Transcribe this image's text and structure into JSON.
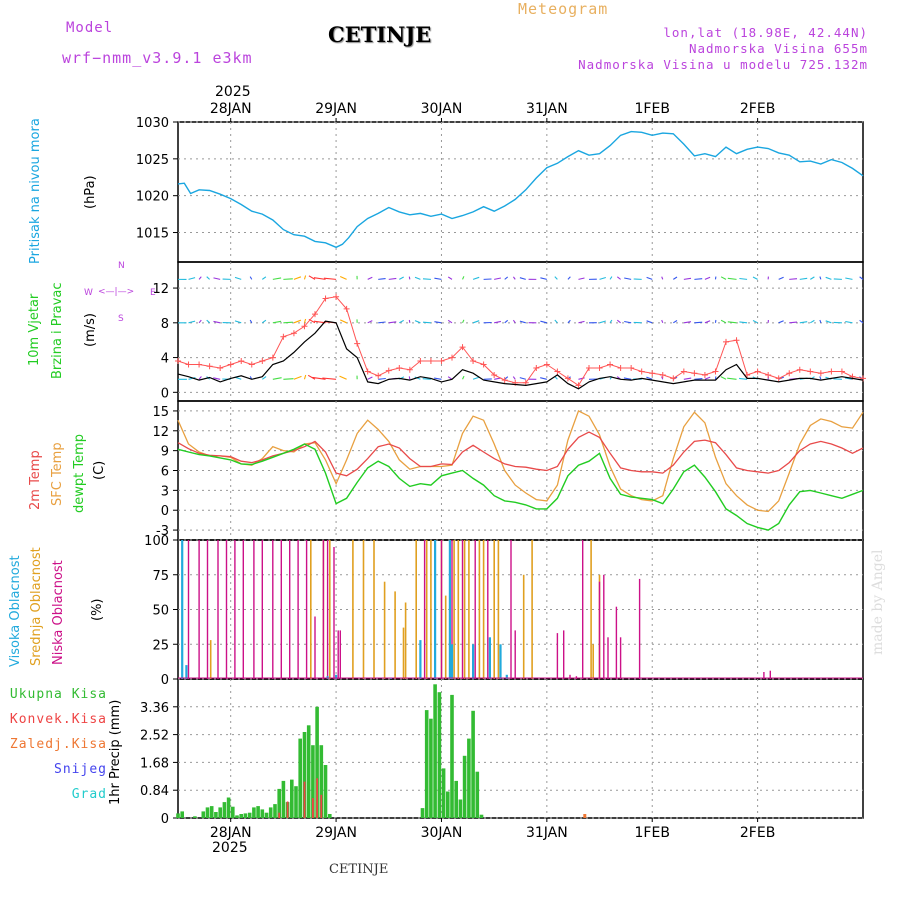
{
  "header": {
    "model_label": "Model",
    "model_name": "wrf−nmm_v3.9.1  e3km",
    "title": "CETINJE",
    "meteogram_label": "Meteogram",
    "lonlat": "lon,lat (18.98E, 42.44N)",
    "elevation": "Nadmorska Visina 655m",
    "model_elevation": "Nadmorska Visina u modelu 725.132m",
    "footer": "CETINJE",
    "watermark": "made by Angel",
    "year_top": "2025",
    "year_bottom": "2025"
  },
  "colors": {
    "pressure": "#1aa6e0",
    "temp2m": "#e84a4a",
    "sfc": "#e8a040",
    "dewpt": "#22cc22",
    "high_cloud": "#22aadd",
    "mid_cloud": "#e0a020",
    "low_cloud": "#cc1188",
    "precip_total": "#33bb33",
    "conv": "#ee4444",
    "frozen": "#ee7733",
    "snow": "#4444ee",
    "grad": "#22cccc",
    "purple": "#bb44dd",
    "grid": "#999999"
  },
  "chart_data": {
    "time_axis": {
      "labels": [
        "28JAN",
        "29JAN",
        "30JAN",
        "31JAN",
        "1FEB",
        "2FEB"
      ],
      "day_positions": [
        0.5,
        1.5,
        2.5,
        3.5,
        4.5,
        5.5
      ],
      "range_days": [
        0.0,
        6.5
      ]
    },
    "pressure": {
      "type": "line",
      "ylabel_a": "Pritisak na nivou mora",
      "ylabel_b": "(hPa)",
      "ylim": [
        1011,
        1030
      ],
      "ticks": [
        1015,
        1020,
        1025,
        1030
      ],
      "x": [
        0.0,
        0.06,
        0.12,
        0.2,
        0.3,
        0.4,
        0.5,
        0.6,
        0.7,
        0.8,
        0.9,
        1.0,
        1.1,
        1.2,
        1.3,
        1.4,
        1.5,
        1.56,
        1.62,
        1.7,
        1.8,
        1.9,
        2.0,
        2.1,
        2.2,
        2.3,
        2.4,
        2.5,
        2.6,
        2.7,
        2.8,
        2.9,
        3.0,
        3.1,
        3.2,
        3.3,
        3.4,
        3.5,
        3.6,
        3.7,
        3.8,
        3.9,
        4.0,
        4.1,
        4.2,
        4.3,
        4.4,
        4.5,
        4.6,
        4.7,
        4.8,
        4.9,
        5.0,
        5.1,
        5.2,
        5.3,
        5.4,
        5.5,
        5.6,
        5.7,
        5.8,
        5.9,
        6.0,
        6.1,
        6.2,
        6.3,
        6.4,
        6.5
      ],
      "values": [
        1021.6,
        1021.7,
        1020.3,
        1020.8,
        1020.7,
        1020.2,
        1019.6,
        1018.8,
        1017.9,
        1017.5,
        1016.7,
        1015.4,
        1014.7,
        1014.5,
        1013.8,
        1013.6,
        1013.0,
        1013.4,
        1014.3,
        1015.8,
        1016.9,
        1017.6,
        1018.4,
        1017.8,
        1017.4,
        1017.6,
        1017.2,
        1017.5,
        1016.9,
        1017.3,
        1017.8,
        1018.5,
        1017.9,
        1018.6,
        1019.5,
        1020.8,
        1022.4,
        1023.8,
        1024.4,
        1025.3,
        1026.1,
        1025.5,
        1025.7,
        1026.8,
        1028.2,
        1028.7,
        1028.6,
        1028.2,
        1028.5,
        1028.4,
        1027.0,
        1025.4,
        1025.7,
        1025.3,
        1026.6,
        1025.7,
        1026.3,
        1026.6,
        1026.4,
        1025.8,
        1025.5,
        1024.6,
        1024.7,
        1024.3,
        1024.9,
        1024.5,
        1023.7,
        1022.7
      ]
    },
    "wind": {
      "type": "line",
      "ylabel_a": "10m Vjetar",
      "ylabel_b": "Brzina i Pravac",
      "ylabel_c": "(m/s)",
      "compass_n": "N",
      "compass_s": "S",
      "compass_w": "W",
      "compass_e": "E",
      "compass_arrows": "<—|—>",
      "ylim": [
        -1,
        15
      ],
      "ticks": [
        0,
        4,
        8,
        12
      ],
      "x": [
        0.0,
        0.1,
        0.2,
        0.3,
        0.4,
        0.5,
        0.6,
        0.7,
        0.8,
        0.9,
        1.0,
        1.1,
        1.2,
        1.3,
        1.4,
        1.5,
        1.6,
        1.7,
        1.8,
        1.9,
        2.0,
        2.1,
        2.2,
        2.3,
        2.4,
        2.5,
        2.6,
        2.7,
        2.8,
        2.9,
        3.0,
        3.1,
        3.2,
        3.3,
        3.4,
        3.5,
        3.6,
        3.7,
        3.8,
        3.9,
        4.0,
        4.1,
        4.2,
        4.3,
        4.4,
        4.5,
        4.6,
        4.7,
        4.8,
        4.9,
        5.0,
        5.1,
        5.2,
        5.3,
        5.4,
        5.5,
        5.6,
        5.7,
        5.8,
        5.9,
        6.0,
        6.1,
        6.2,
        6.3,
        6.4,
        6.5
      ],
      "speed": [
        2.1,
        1.8,
        1.4,
        1.7,
        1.2,
        1.6,
        1.9,
        1.5,
        1.8,
        3.2,
        3.6,
        4.6,
        5.8,
        6.8,
        8.2,
        8.0,
        5.0,
        4.0,
        1.2,
        1.0,
        1.5,
        1.6,
        1.4,
        1.8,
        1.6,
        1.2,
        1.5,
        2.6,
        2.2,
        1.4,
        1.2,
        1.0,
        0.9,
        0.8,
        1.0,
        1.2,
        2.0,
        1.0,
        0.4,
        1.2,
        1.6,
        1.8,
        1.5,
        1.4,
        1.6,
        1.4,
        1.2,
        1.0,
        1.2,
        1.4,
        1.4,
        1.4,
        2.6,
        3.2,
        1.6,
        1.6,
        1.4,
        1.2,
        1.4,
        1.6,
        1.6,
        1.4,
        1.6,
        1.8,
        1.6,
        1.4
      ],
      "gust": [
        3.6,
        3.2,
        3.2,
        3.0,
        2.8,
        3.2,
        3.6,
        3.2,
        3.6,
        4.0,
        6.4,
        6.8,
        7.6,
        9.0,
        10.8,
        11.0,
        9.6,
        5.6,
        2.4,
        1.9,
        2.5,
        2.8,
        2.6,
        3.6,
        3.6,
        3.6,
        4.0,
        5.2,
        3.6,
        3.2,
        2.0,
        1.4,
        1.1,
        1.1,
        2.8,
        3.2,
        2.4,
        1.6,
        0.8,
        2.8,
        2.8,
        3.2,
        2.8,
        2.8,
        2.4,
        2.2,
        2.0,
        1.6,
        2.4,
        2.2,
        2.0,
        2.4,
        5.8,
        6.0,
        2.0,
        2.4,
        2.0,
        1.6,
        2.2,
        2.6,
        2.4,
        2.2,
        2.4,
        2.4,
        1.8,
        1.6
      ]
    },
    "temperature": {
      "type": "line",
      "ylabel_a": "2m Temp",
      "ylabel_b": "SFC Temp",
      "ylabel_c": "dewpt Temp",
      "ylabel_d": "(C)",
      "ylim": [
        -4.5,
        16.5
      ],
      "ticks": [
        -3,
        0,
        3,
        6,
        9,
        12,
        15
      ],
      "x": [
        0.0,
        0.1,
        0.2,
        0.3,
        0.4,
        0.5,
        0.6,
        0.7,
        0.8,
        0.9,
        1.0,
        1.1,
        1.2,
        1.3,
        1.4,
        1.5,
        1.6,
        1.7,
        1.8,
        1.9,
        2.0,
        2.1,
        2.2,
        2.3,
        2.4,
        2.5,
        2.6,
        2.7,
        2.8,
        2.9,
        3.0,
        3.1,
        3.2,
        3.3,
        3.4,
        3.5,
        3.6,
        3.7,
        3.8,
        3.9,
        4.0,
        4.1,
        4.2,
        4.3,
        4.4,
        4.5,
        4.6,
        4.7,
        4.8,
        4.9,
        5.0,
        5.1,
        5.2,
        5.3,
        5.4,
        5.5,
        5.6,
        5.7,
        5.8,
        5.9,
        6.0,
        6.1,
        6.2,
        6.3,
        6.4,
        6.5
      ],
      "t2m": [
        10.2,
        9.3,
        8.6,
        8.3,
        8.2,
        8.1,
        7.4,
        7.2,
        7.6,
        8.2,
        8.6,
        9.0,
        9.6,
        10.4,
        8.8,
        5.6,
        5.2,
        6.2,
        7.8,
        9.6,
        10.0,
        9.4,
        7.8,
        6.6,
        6.6,
        7.0,
        6.9,
        8.8,
        9.8,
        8.8,
        7.8,
        7.0,
        6.6,
        6.5,
        6.2,
        6.0,
        6.6,
        9.2,
        11.0,
        11.8,
        11.0,
        8.6,
        6.4,
        6.0,
        5.8,
        5.8,
        5.6,
        6.8,
        8.8,
        10.4,
        10.6,
        10.2,
        8.4,
        6.4,
        6.0,
        5.8,
        5.6,
        6.0,
        7.2,
        9.0,
        10.0,
        10.4,
        10.0,
        9.4,
        8.6,
        9.4
      ],
      "sfc": [
        13.6,
        10.0,
        8.8,
        8.2,
        8.2,
        8.0,
        7.0,
        6.8,
        7.8,
        9.6,
        9.0,
        8.8,
        10.0,
        10.2,
        7.6,
        4.0,
        7.6,
        11.6,
        13.6,
        12.2,
        10.4,
        7.6,
        6.2,
        6.6,
        6.6,
        6.6,
        6.8,
        11.6,
        14.2,
        13.6,
        10.0,
        6.0,
        3.8,
        2.6,
        1.6,
        1.4,
        3.8,
        10.6,
        15.0,
        14.2,
        11.4,
        6.6,
        3.2,
        2.2,
        1.6,
        1.4,
        2.2,
        7.8,
        12.6,
        14.8,
        13.2,
        8.0,
        4.0,
        2.2,
        0.8,
        0.0,
        -0.2,
        1.4,
        5.6,
        10.0,
        12.8,
        13.8,
        13.4,
        12.6,
        12.4,
        14.8
      ],
      "dewpt": [
        9.2,
        8.8,
        8.4,
        8.2,
        7.9,
        7.6,
        7.0,
        6.9,
        7.4,
        8.0,
        8.6,
        9.2,
        10.0,
        9.2,
        5.6,
        1.0,
        1.8,
        4.2,
        6.4,
        7.4,
        6.6,
        4.8,
        3.6,
        4.0,
        3.8,
        5.2,
        5.6,
        6.0,
        4.8,
        3.8,
        2.2,
        1.4,
        1.2,
        0.8,
        0.2,
        0.2,
        1.8,
        5.2,
        6.8,
        7.4,
        8.6,
        4.8,
        2.4,
        2.0,
        1.8,
        1.6,
        1.0,
        3.2,
        5.8,
        6.8,
        5.0,
        2.8,
        0.2,
        -0.8,
        -2.0,
        -2.6,
        -3.0,
        -2.0,
        0.8,
        2.8,
        3.0,
        2.6,
        2.2,
        1.8,
        2.4,
        3.0
      ]
    },
    "clouds": {
      "type": "bar",
      "ylabel_a": "Visoka Oblacnost",
      "ylabel_b": "Srednja Oblacnost",
      "ylabel_c": "Niska Oblacnost",
      "ylabel_d": "(%)",
      "ylim": [
        0,
        100
      ],
      "ticks": [
        0,
        25,
        50,
        75,
        100
      ],
      "high_x": [
        0.04,
        0.08,
        1.42,
        1.5,
        2.02,
        2.3,
        2.44,
        2.58,
        2.6,
        2.8,
        2.96,
        3.06,
        3.12
      ],
      "high_values": [
        100,
        10,
        2,
        3,
        1,
        28,
        100,
        100,
        25,
        25,
        30,
        25,
        3
      ],
      "mid_x": [
        0.31,
        1.26,
        1.38,
        1.44,
        1.66,
        1.76,
        1.86,
        1.96,
        2.06,
        2.14,
        2.16,
        2.26,
        2.36,
        2.4,
        2.5,
        2.54,
        2.62,
        2.66,
        2.72,
        2.76,
        2.86,
        2.9,
        3.0,
        3.04,
        3.28,
        3.36,
        3.92,
        3.94,
        4.0
      ],
      "mid_values": [
        28,
        100,
        100,
        100,
        100,
        100,
        100,
        70,
        63,
        37,
        55,
        100,
        100,
        100,
        100,
        60,
        100,
        100,
        100,
        100,
        100,
        100,
        100,
        100,
        75,
        100,
        100,
        25,
        75
      ],
      "low_x": [
        0.1,
        0.2,
        0.28,
        0.38,
        0.46,
        0.54,
        0.62,
        0.72,
        0.8,
        0.9,
        0.98,
        1.06,
        1.14,
        1.22,
        1.3,
        1.38,
        1.42,
        1.48,
        1.52,
        1.54,
        2.34,
        2.5,
        2.6,
        2.7,
        2.82,
        2.94,
        3.16,
        3.2,
        3.6,
        3.66,
        3.72,
        3.78,
        3.84,
        4.0,
        4.04,
        4.08,
        4.16,
        4.2,
        4.38,
        5.56,
        5.62
      ],
      "low_values": [
        100,
        100,
        100,
        100,
        100,
        100,
        100,
        100,
        100,
        100,
        100,
        100,
        100,
        100,
        45,
        100,
        100,
        95,
        35,
        35,
        100,
        100,
        100,
        100,
        100,
        100,
        100,
        35,
        33,
        35,
        3,
        2,
        100,
        70,
        75,
        30,
        52,
        30,
        72,
        5,
        6
      ]
    },
    "precip": {
      "type": "bar",
      "label_total": "Ukupna Kisa",
      "label_conv": "Konvek.Kisa",
      "label_frozen": "Zaledj.Kisa",
      "label_snow": "Snijeg",
      "label_grad": "Grad",
      "ylabel": "1hr Precip (mm)",
      "ylim": [
        0,
        4.2
      ],
      "ticks": [
        0,
        0.84,
        1.68,
        2.52,
        3.36
      ],
      "tick_labels": [
        "0",
        "0.84",
        "1.68",
        "2.52",
        "3.36"
      ],
      "total_x": [
        0.0,
        0.04,
        0.16,
        0.24,
        0.28,
        0.32,
        0.36,
        0.4,
        0.44,
        0.48,
        0.52,
        0.56,
        0.6,
        0.64,
        0.68,
        0.72,
        0.76,
        0.8,
        0.84,
        0.88,
        0.92,
        0.96,
        1.0,
        1.04,
        1.08,
        1.12,
        1.16,
        1.2,
        1.24,
        1.28,
        1.32,
        1.36,
        1.4,
        1.44,
        2.32,
        2.36,
        2.4,
        2.44,
        2.48,
        2.52,
        2.56,
        2.6,
        2.64,
        2.68,
        2.72,
        2.76,
        2.8,
        2.84,
        2.88
      ],
      "total_values": [
        0.14,
        0.2,
        0.05,
        0.2,
        0.32,
        0.36,
        0.18,
        0.32,
        0.48,
        0.62,
        0.34,
        0.08,
        0.12,
        0.14,
        0.16,
        0.32,
        0.36,
        0.26,
        0.16,
        0.32,
        0.42,
        0.88,
        1.12,
        0.48,
        1.16,
        0.96,
        2.4,
        2.6,
        2.8,
        2.2,
        3.36,
        2.2,
        1.6,
        0.12,
        0.3,
        3.26,
        3.0,
        4.04,
        3.8,
        1.5,
        0.8,
        3.72,
        1.12,
        0.56,
        1.88,
        2.4,
        3.24,
        1.4,
        0.1
      ],
      "conv_x": [
        0.96,
        1.04,
        1.2,
        1.28,
        1.32,
        1.36
      ],
      "conv_values": [
        0.16,
        0.5,
        1.1,
        0.6,
        1.2,
        0.7
      ],
      "frozen_x": [
        3.86
      ],
      "frozen_values": [
        0.12
      ]
    }
  }
}
